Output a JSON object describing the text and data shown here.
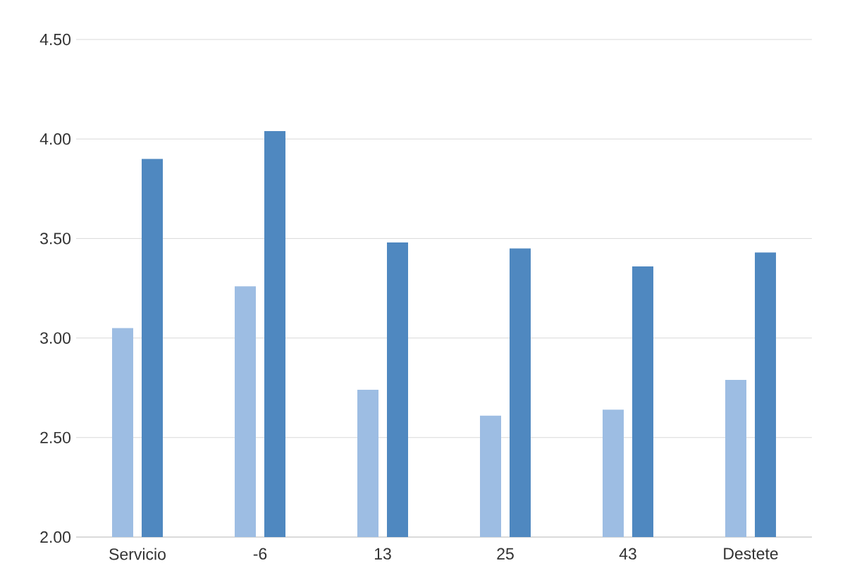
{
  "chart_data": {
    "type": "bar",
    "categories": [
      "Servicio",
      "-6",
      "13",
      "25",
      "43",
      "Destete"
    ],
    "series": [
      {
        "color": "#9dbde3",
        "values": [
          3.05,
          3.26,
          2.74,
          2.61,
          2.64,
          2.79
        ]
      },
      {
        "color": "#4f88c0",
        "values": [
          3.9,
          4.04,
          3.48,
          3.45,
          3.36,
          3.43
        ]
      }
    ],
    "ylim": [
      2.0,
      4.5
    ],
    "yticks": [
      {
        "value": 2.0,
        "label": "2.00"
      },
      {
        "value": 2.5,
        "label": "2.50"
      },
      {
        "value": 3.0,
        "label": "3.00"
      },
      {
        "value": 3.5,
        "label": "3.50"
      },
      {
        "value": 4.0,
        "label": "4.00"
      },
      {
        "value": 4.5,
        "label": "4.50"
      }
    ],
    "grid": "y"
  }
}
